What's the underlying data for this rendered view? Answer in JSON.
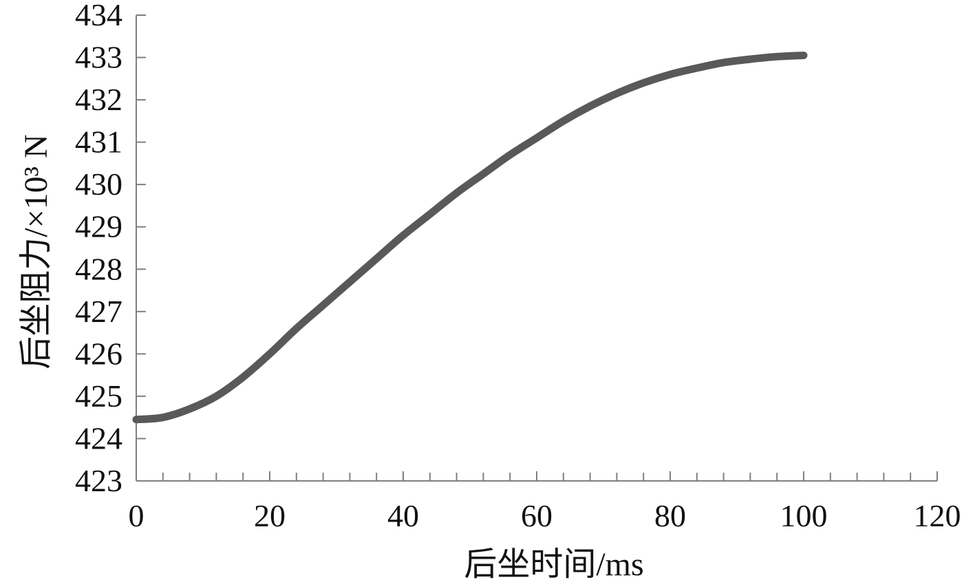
{
  "chart_data": {
    "type": "line",
    "title": "",
    "xlabel": "后坐时间/ms",
    "ylabel": "后坐阻力/×10³ N",
    "xlim": [
      0,
      120
    ],
    "ylim": [
      423,
      434
    ],
    "x_ticks": [
      0,
      20,
      40,
      60,
      80,
      100,
      120
    ],
    "x_minor_step": 4,
    "y_ticks": [
      423,
      424,
      425,
      426,
      427,
      428,
      429,
      430,
      431,
      432,
      433,
      434
    ],
    "grid": false,
    "legend": "none",
    "series": [
      {
        "color": "#595959",
        "x": [
          0,
          4,
          8,
          12,
          16,
          20,
          24,
          28,
          32,
          36,
          40,
          44,
          48,
          52,
          56,
          60,
          64,
          68,
          72,
          76,
          80,
          84,
          88,
          92,
          96,
          100
        ],
        "y": [
          424.45,
          424.5,
          424.7,
          425.0,
          425.45,
          426.0,
          426.6,
          427.15,
          427.7,
          428.25,
          428.8,
          429.3,
          429.8,
          430.25,
          430.7,
          431.1,
          431.5,
          431.85,
          432.15,
          432.4,
          432.6,
          432.75,
          432.88,
          432.96,
          433.02,
          433.05
        ]
      }
    ]
  }
}
